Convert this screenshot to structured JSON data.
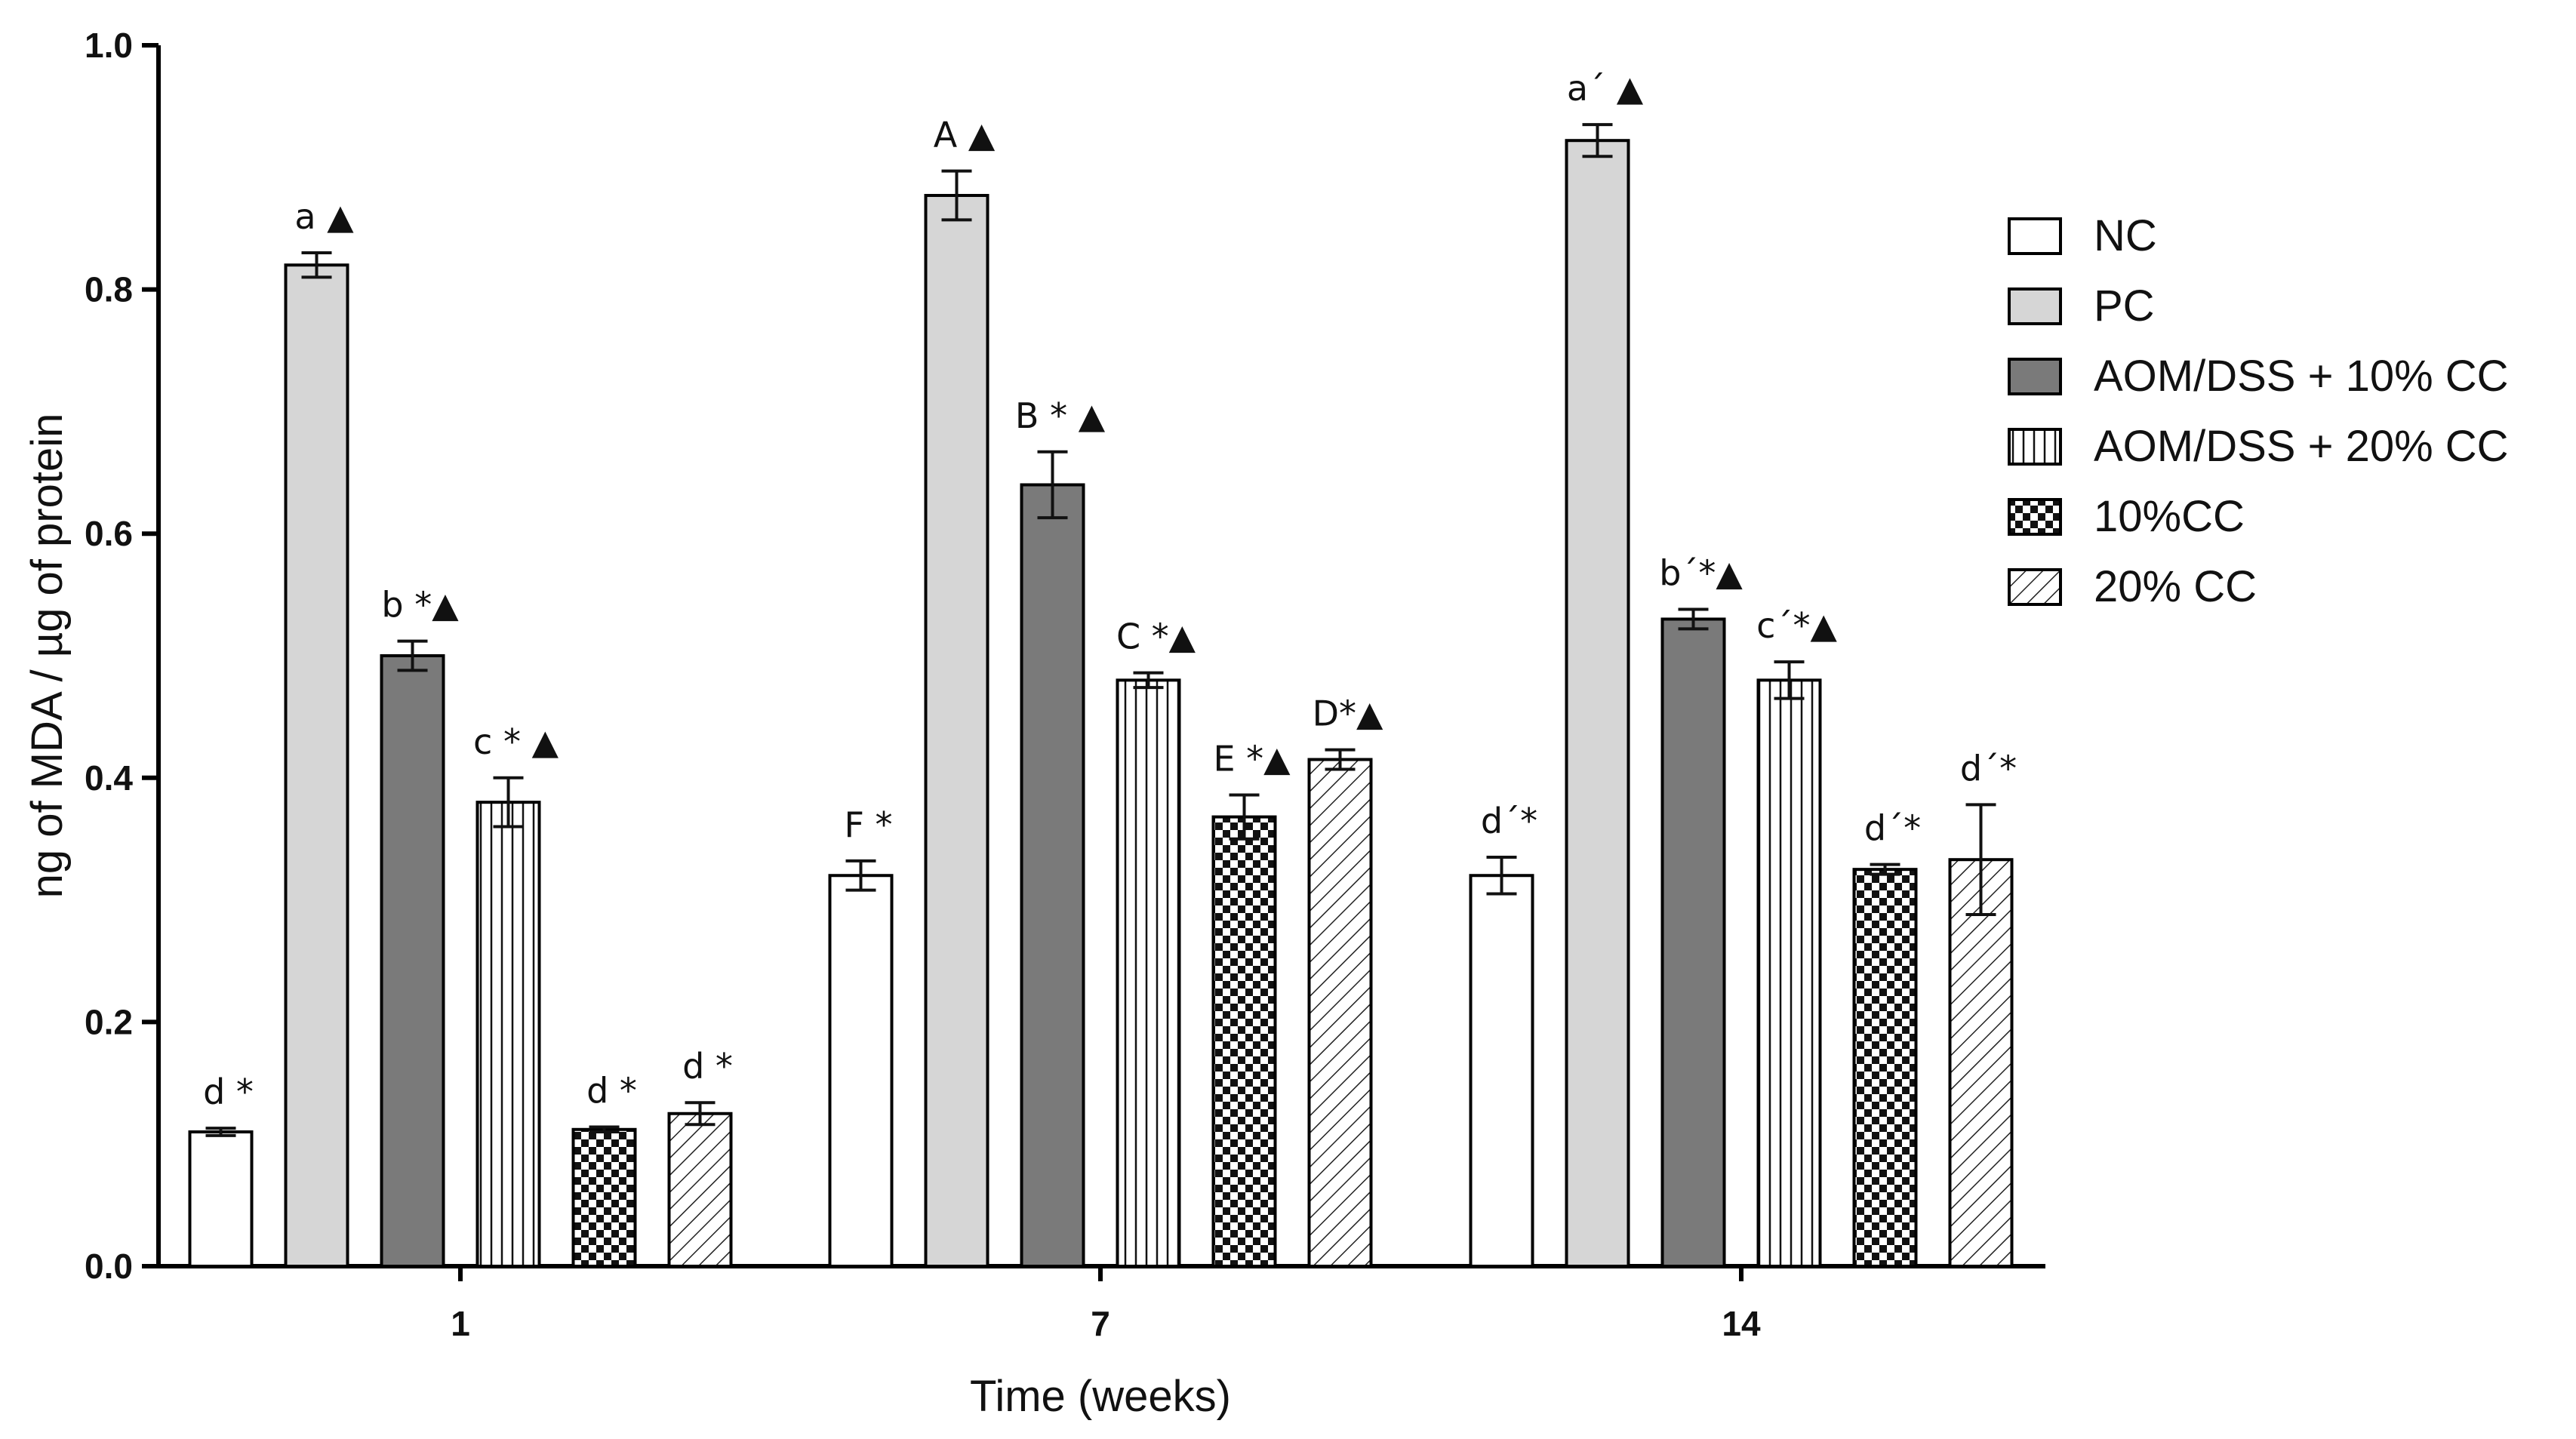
{
  "chart_data": {
    "type": "bar",
    "title": "",
    "xlabel": "Time (weeks)",
    "ylabel": "ng of MDA / µg of protein",
    "ylim": [
      0,
      1.0
    ],
    "yticks": [
      "0.0",
      "0.2",
      "0.4",
      "0.6",
      "0.8",
      "1.0"
    ],
    "categories": [
      "1",
      "7",
      "14"
    ],
    "legend_position": "right",
    "series": [
      {
        "name": "NC",
        "pattern": "white",
        "values": [
          0.11,
          0.32,
          0.32
        ],
        "errors": [
          0.003,
          0.012,
          0.015
        ],
        "labels": [
          "d *",
          "F *",
          "d´*"
        ]
      },
      {
        "name": "PC",
        "pattern": "lightgray",
        "values": [
          0.82,
          0.877,
          0.922
        ],
        "errors": [
          0.01,
          0.02,
          0.013
        ],
        "labels": [
          "a ▲",
          "A ▲",
          "a´ ▲"
        ]
      },
      {
        "name": "AOM/DSS + 10% CC",
        "pattern": "darkgray",
        "values": [
          0.5,
          0.64,
          0.53
        ],
        "errors": [
          0.012,
          0.027,
          0.008
        ],
        "labels": [
          "b *▲",
          "B * ▲",
          "b´*▲"
        ]
      },
      {
        "name": "AOM/DSS + 20% CC",
        "pattern": "vertical",
        "values": [
          0.38,
          0.48,
          0.48
        ],
        "errors": [
          0.02,
          0.006,
          0.015
        ],
        "labels": [
          "c * ▲",
          "C *▲",
          "c´*▲"
        ]
      },
      {
        "name": "10%CC",
        "pattern": "checker",
        "values": [
          0.112,
          0.368,
          0.325
        ],
        "errors": [
          0.002,
          0.018,
          0.004
        ],
        "labels": [
          "d *",
          "E *▲",
          "d´*"
        ]
      },
      {
        "name": "20% CC",
        "pattern": "diagonal",
        "values": [
          0.125,
          0.415,
          0.333
        ],
        "errors": [
          0.009,
          0.008,
          0.045
        ],
        "labels": [
          "d *",
          "D*▲",
          "d´*"
        ]
      }
    ]
  }
}
